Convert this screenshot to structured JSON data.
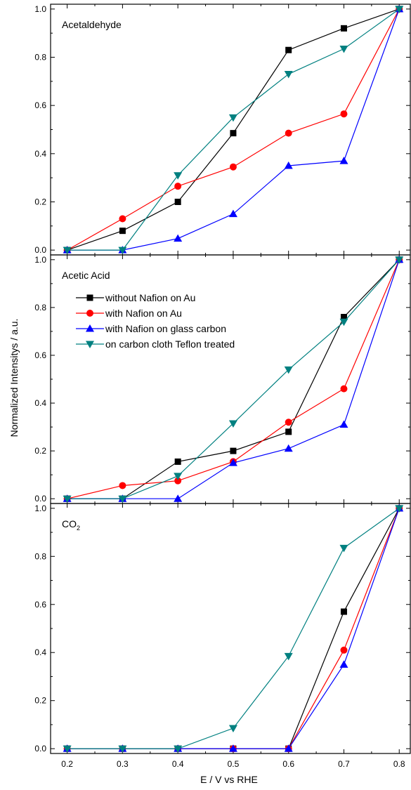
{
  "figure": {
    "ylabel": "Normalized Intensitys / a.u.",
    "xlabel": "E / V vs RHE",
    "legend_position": "upper-left of middle panel"
  },
  "chart_data": [
    {
      "type": "line",
      "panel_label": "Acetaldehyde",
      "x": [
        0.2,
        0.3,
        0.4,
        0.5,
        0.6,
        0.7,
        0.8
      ],
      "xlim": [
        0.17,
        0.82
      ],
      "ylim": [
        -0.02,
        1.02
      ],
      "yticks": [
        "0.0",
        "0.2",
        "0.4",
        "0.6",
        "0.8",
        "1.0"
      ],
      "series": [
        {
          "name": "without Nafion on Au",
          "color": "#000000",
          "marker": "square",
          "values": [
            0.0,
            0.08,
            0.2,
            0.485,
            0.83,
            0.92,
            1.0
          ]
        },
        {
          "name": "with Nafion on Au",
          "color": "#ff0000",
          "marker": "circle",
          "values": [
            0.0,
            0.13,
            0.265,
            0.345,
            0.485,
            0.565,
            1.0
          ]
        },
        {
          "name": "with Nafion on glass carbon",
          "color": "#0000ff",
          "marker": "triangle-up",
          "values": [
            0.0,
            0.0,
            0.048,
            0.15,
            0.35,
            0.37,
            1.0
          ]
        },
        {
          "name": "on carbon cloth Teflon treated",
          "color": "#008080",
          "marker": "triangle-down",
          "values": [
            0.0,
            0.0,
            0.31,
            0.55,
            0.73,
            0.835,
            1.0
          ]
        }
      ]
    },
    {
      "type": "line",
      "panel_label": "Acetic Acid",
      "x": [
        0.2,
        0.3,
        0.4,
        0.5,
        0.6,
        0.7,
        0.8
      ],
      "xlim": [
        0.17,
        0.82
      ],
      "ylim": [
        -0.02,
        1.02
      ],
      "yticks": [
        "0.0",
        "0.2",
        "0.4",
        "0.6",
        "0.8",
        "1.0"
      ],
      "series": [
        {
          "name": "without Nafion on Au",
          "color": "#000000",
          "marker": "square",
          "values": [
            0.0,
            0.0,
            0.155,
            0.2,
            0.28,
            0.76,
            1.0
          ]
        },
        {
          "name": "with Nafion on Au",
          "color": "#ff0000",
          "marker": "circle",
          "values": [
            0.0,
            0.055,
            0.075,
            0.155,
            0.32,
            0.46,
            1.0
          ]
        },
        {
          "name": "with Nafion on glass carbon",
          "color": "#0000ff",
          "marker": "triangle-up",
          "values": [
            0.0,
            0.0,
            0.0,
            0.15,
            0.21,
            0.31,
            1.0
          ]
        },
        {
          "name": "on carbon cloth Teflon treated",
          "color": "#008080",
          "marker": "triangle-down",
          "values": [
            0.0,
            0.0,
            0.095,
            0.315,
            0.54,
            0.74,
            1.0
          ]
        }
      ]
    },
    {
      "type": "line",
      "panel_label": "CO",
      "panel_label_sub": "2",
      "x": [
        0.2,
        0.3,
        0.4,
        0.5,
        0.6,
        0.7,
        0.8
      ],
      "xticks": [
        "0.2",
        "0.3",
        "0.4",
        "0.5",
        "0.6",
        "0.7",
        "0.8"
      ],
      "xlim": [
        0.17,
        0.82
      ],
      "ylim": [
        -0.02,
        1.02
      ],
      "yticks": [
        "0.0",
        "0.2",
        "0.4",
        "0.6",
        "0.8",
        "1.0"
      ],
      "series": [
        {
          "name": "without Nafion on Au",
          "color": "#000000",
          "marker": "square",
          "values": [
            0.0,
            0.0,
            0.0,
            0.0,
            0.0,
            0.57,
            1.0
          ]
        },
        {
          "name": "with Nafion on Au",
          "color": "#ff0000",
          "marker": "circle",
          "values": [
            0.0,
            0.0,
            0.0,
            0.0,
            0.0,
            0.41,
            1.0
          ]
        },
        {
          "name": "with Nafion on glass carbon",
          "color": "#0000ff",
          "marker": "triangle-up",
          "values": [
            0.0,
            0.0,
            0.0,
            0.0,
            0.0,
            0.35,
            1.0
          ]
        },
        {
          "name": "on carbon cloth Teflon treated",
          "color": "#008080",
          "marker": "triangle-down",
          "values": [
            0.0,
            0.0,
            0.0,
            0.085,
            0.385,
            0.835,
            1.0
          ]
        }
      ]
    }
  ]
}
